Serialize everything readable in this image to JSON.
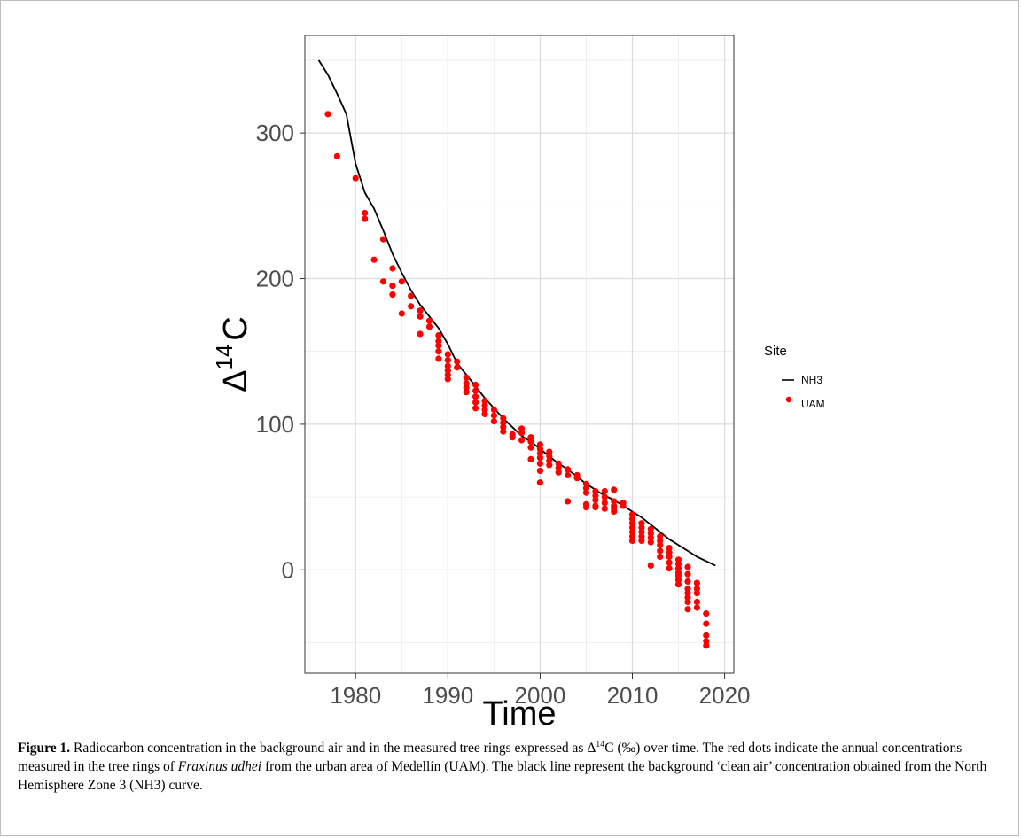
{
  "chart_data": {
    "type": "scatter",
    "xlabel": "Time",
    "ylabel_parts": {
      "base": "Δ",
      "sup": "14",
      "tail": "C"
    },
    "xlim": [
      1974.5,
      2021
    ],
    "ylim": [
      -71,
      367
    ],
    "x_ticks": [
      1980,
      1990,
      2000,
      2010,
      2020
    ],
    "y_ticks": [
      0,
      100,
      200,
      300
    ],
    "grid": true,
    "legend": {
      "title": "Site",
      "placement": "right",
      "entries": [
        {
          "label": "NH3",
          "kind": "line",
          "color": "#000000"
        },
        {
          "label": "UAM",
          "kind": "point",
          "color": "#ff0000"
        }
      ]
    },
    "series": [
      {
        "name": "NH3",
        "kind": "line",
        "color": "#000000",
        "x": [
          1976,
          1977,
          1978,
          1979,
          1980,
          1981,
          1982,
          1983,
          1984,
          1985,
          1986,
          1987,
          1988,
          1989,
          1990,
          1991,
          1992,
          1993,
          1994,
          1995,
          1996,
          1997,
          1998,
          1999,
          2000,
          2001,
          2002,
          2003,
          2004,
          2005,
          2006,
          2007,
          2008,
          2009,
          2010,
          2011,
          2012,
          2013,
          2014,
          2015,
          2016,
          2017,
          2018,
          2019
        ],
        "y": [
          350,
          340,
          327,
          313,
          279,
          259,
          248,
          233,
          217,
          204,
          192,
          182,
          174,
          166,
          155,
          142,
          134,
          126,
          118,
          111,
          104,
          98,
          92,
          88,
          83,
          78,
          73,
          69,
          64,
          59,
          55,
          51,
          48,
          44,
          40,
          36,
          31,
          26,
          21,
          17,
          13,
          9,
          6,
          3
        ]
      },
      {
        "name": "UAM",
        "kind": "point",
        "color": "#ff0000",
        "x": [
          1977,
          1978,
          1980,
          1981,
          1981,
          1982,
          1983,
          1983,
          1984,
          1984,
          1984,
          1985,
          1985,
          1986,
          1986,
          1987,
          1987,
          1987,
          1988,
          1988,
          1989,
          1989,
          1989,
          1989,
          1989,
          1990,
          1990,
          1990,
          1990,
          1990,
          1990,
          1991,
          1991,
          1992,
          1992,
          1992,
          1992,
          1993,
          1993,
          1993,
          1993,
          1993,
          1994,
          1994,
          1994,
          1994,
          1995,
          1995,
          1995,
          1996,
          1996,
          1996,
          1996,
          1997,
          1997,
          1998,
          1998,
          1998,
          1999,
          1999,
          1999,
          1999,
          2000,
          2000,
          2000,
          2000,
          2000,
          2000,
          2000,
          2001,
          2001,
          2001,
          2001,
          2002,
          2002,
          2002,
          2003,
          2003,
          2003,
          2004,
          2004,
          2005,
          2005,
          2005,
          2005,
          2005,
          2006,
          2006,
          2006,
          2006,
          2006,
          2007,
          2007,
          2007,
          2007,
          2008,
          2008,
          2008,
          2008,
          2008,
          2009,
          2009,
          2010,
          2010,
          2010,
          2010,
          2010,
          2010,
          2010,
          2011,
          2011,
          2011,
          2011,
          2011,
          2012,
          2012,
          2012,
          2012,
          2012,
          2013,
          2013,
          2013,
          2013,
          2013,
          2014,
          2014,
          2014,
          2014,
          2014,
          2015,
          2015,
          2015,
          2015,
          2015,
          2015,
          2015,
          2016,
          2016,
          2016,
          2016,
          2016,
          2016,
          2016,
          2016,
          2017,
          2017,
          2017,
          2017,
          2017,
          2018,
          2018,
          2018,
          2018,
          2018
        ],
        "y": [
          313,
          284,
          269,
          245,
          241,
          213,
          227,
          198,
          207,
          195,
          189,
          198,
          176,
          188,
          181,
          178,
          174,
          162,
          171,
          167,
          161,
          157,
          154,
          150,
          145,
          148,
          144,
          140,
          137,
          134,
          131,
          143,
          139,
          132,
          128,
          125,
          122,
          127,
          123,
          119,
          115,
          111,
          116,
          113,
          110,
          107,
          110,
          106,
          102,
          104,
          101,
          98,
          95,
          93,
          91,
          97,
          94,
          89,
          91,
          88,
          84,
          76,
          86,
          83,
          80,
          77,
          73,
          68,
          60,
          81,
          78,
          75,
          72,
          73,
          70,
          67,
          69,
          65,
          47,
          65,
          63,
          59,
          56,
          53,
          45,
          43,
          54,
          51,
          48,
          44,
          43,
          54,
          50,
          46,
          42,
          55,
          47,
          44,
          42,
          40,
          46,
          44,
          38,
          35,
          32,
          29,
          26,
          23,
          20,
          32,
          29,
          26,
          23,
          20,
          28,
          25,
          22,
          19,
          3,
          23,
          20,
          17,
          13,
          9,
          15,
          12,
          9,
          5,
          1,
          7,
          4,
          1,
          -2,
          -4,
          -7,
          -10,
          2,
          -3,
          -8,
          -13,
          -16,
          -19,
          -22,
          -27,
          -9,
          -13,
          -16,
          -22,
          -26,
          -30,
          -37,
          -45,
          -49,
          -52
        ]
      }
    ]
  },
  "caption": {
    "label": "Figure 1.",
    "part1": " Radiocarbon concentration in the background air and in the measured tree rings expressed as Δ",
    "sup": "14",
    "part2": "C (‰) over time. The red dots indicate the annual concentrations measured in the tree rings of ",
    "species": "Fraxinus udhei",
    "part3": " from the urban area of Medellín (UAM). The black line represent the background ‘clean air’ concentration obtained from the North Hemisphere Zone 3 (NH3) curve."
  }
}
